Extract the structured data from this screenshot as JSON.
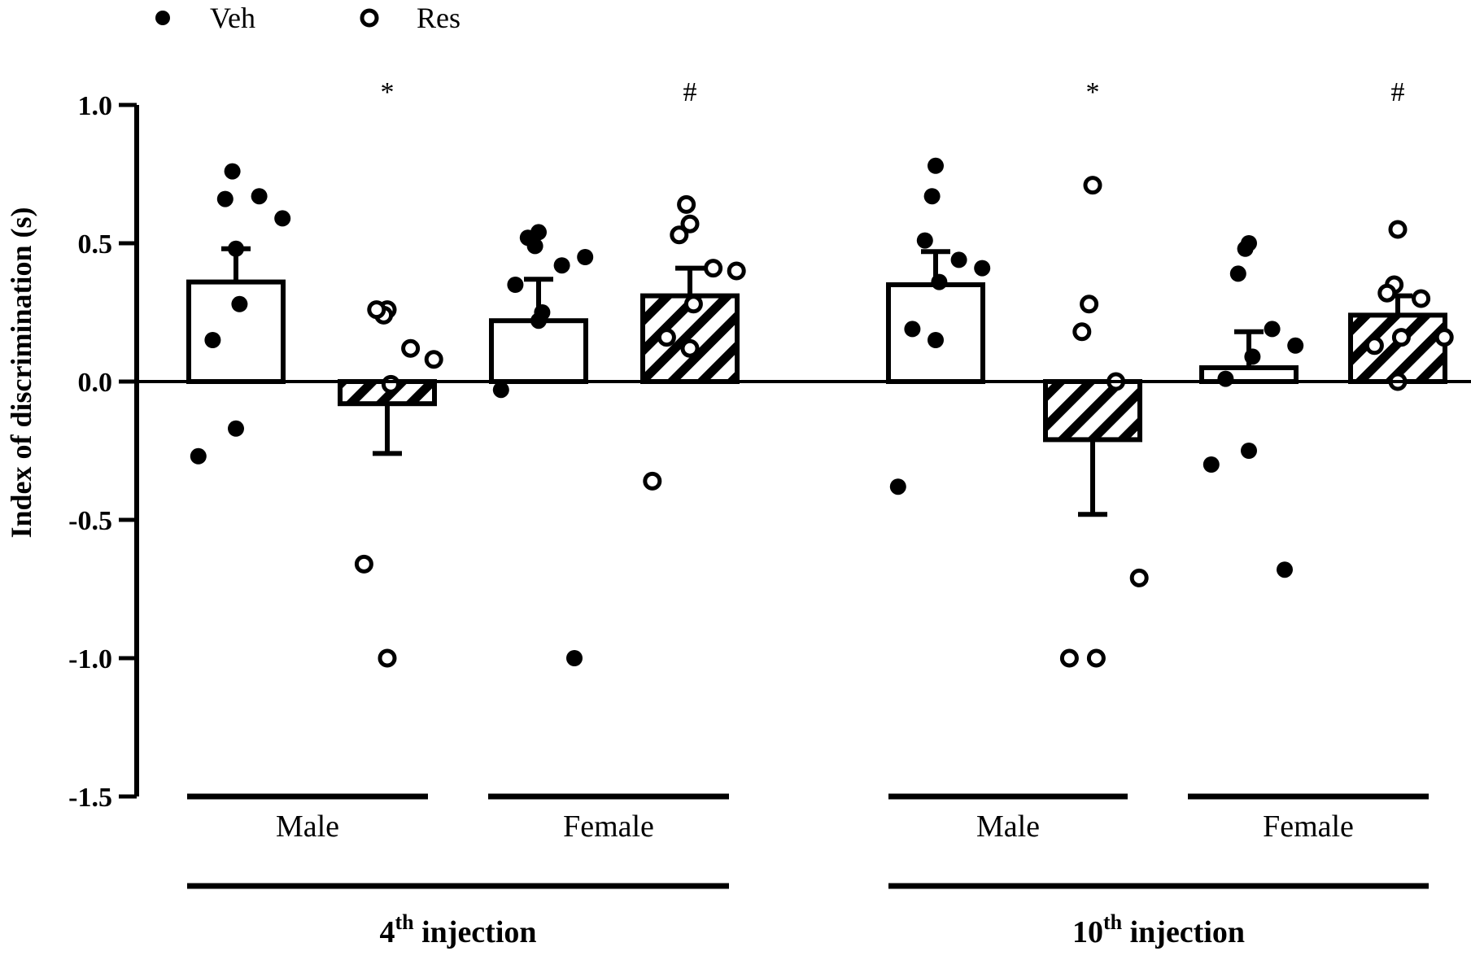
{
  "chart_data": {
    "type": "bar",
    "ylabel": "Index of discrimination (s)",
    "ylim": [
      -1.5,
      1.0
    ],
    "yticks": [
      1.0,
      0.5,
      0.0,
      -0.5,
      -1.0,
      -1.5
    ],
    "ytick_labels": [
      "1.0",
      "0.5",
      "0.0",
      "-0.5",
      "-1.0",
      "-1.5"
    ],
    "legend": {
      "placement": "top-left",
      "entries": [
        {
          "name": "Veh",
          "marker": "filled-circle"
        },
        {
          "name": "Res",
          "marker": "open-circle"
        }
      ]
    },
    "series_names": [
      "Veh",
      "Res"
    ],
    "group_labels": [
      "Male",
      "Female",
      "Male",
      "Female"
    ],
    "injection_labels": [
      {
        "base": "4",
        "sup": "th",
        "rest": " injection"
      },
      {
        "base": "10",
        "sup": "th",
        "rest": " injection"
      }
    ],
    "bars": [
      {
        "injection": "4th",
        "sex": "Male",
        "series": "Veh",
        "mean": 0.36,
        "sem": 0.12,
        "points": [
          0.48,
          0.76,
          0.66,
          0.67,
          0.59,
          0.28,
          0.15,
          -0.17,
          -0.27
        ],
        "annotation": ""
      },
      {
        "injection": "4th",
        "sex": "Male",
        "series": "Res",
        "mean": -0.08,
        "sem": 0.18,
        "points": [
          0.26,
          0.24,
          0.26,
          0.12,
          0.08,
          -0.01,
          -0.66,
          -1.0
        ],
        "annotation": "*"
      },
      {
        "injection": "4th",
        "sex": "Female",
        "series": "Veh",
        "mean": 0.22,
        "sem": 0.15,
        "points": [
          0.54,
          0.49,
          0.52,
          0.42,
          0.45,
          0.25,
          0.35,
          0.22,
          -0.03,
          -1.0
        ],
        "annotation": ""
      },
      {
        "injection": "4th",
        "sex": "Female",
        "series": "Res",
        "mean": 0.31,
        "sem": 0.1,
        "points": [
          0.57,
          0.64,
          0.53,
          0.41,
          0.4,
          0.28,
          0.16,
          0.12,
          -0.36
        ],
        "annotation": "#"
      },
      {
        "injection": "10th",
        "sex": "Male",
        "series": "Veh",
        "mean": 0.35,
        "sem": 0.12,
        "points": [
          0.78,
          0.67,
          0.51,
          0.44,
          0.41,
          0.36,
          0.19,
          0.15,
          -0.38
        ],
        "annotation": ""
      },
      {
        "injection": "10th",
        "sex": "Male",
        "series": "Res",
        "mean": -0.21,
        "sem": 0.27,
        "points": [
          0.71,
          0.28,
          0.18,
          0.0,
          -0.71,
          -1.0,
          -1.0
        ],
        "annotation": "*"
      },
      {
        "injection": "10th",
        "sex": "Female",
        "series": "Veh",
        "mean": 0.05,
        "sem": 0.13,
        "points": [
          0.5,
          0.48,
          0.39,
          0.19,
          0.13,
          0.09,
          0.01,
          -0.25,
          -0.3,
          -0.68
        ],
        "annotation": ""
      },
      {
        "injection": "10th",
        "sex": "Female",
        "series": "Res",
        "mean": 0.24,
        "sem": 0.07,
        "points": [
          0.55,
          0.35,
          0.32,
          0.3,
          0.16,
          0.16,
          0.13,
          0.0
        ],
        "annotation": "#"
      }
    ],
    "grid": false,
    "colors": {
      "ink": "#000000",
      "bar_fill": "#ffffff"
    }
  }
}
